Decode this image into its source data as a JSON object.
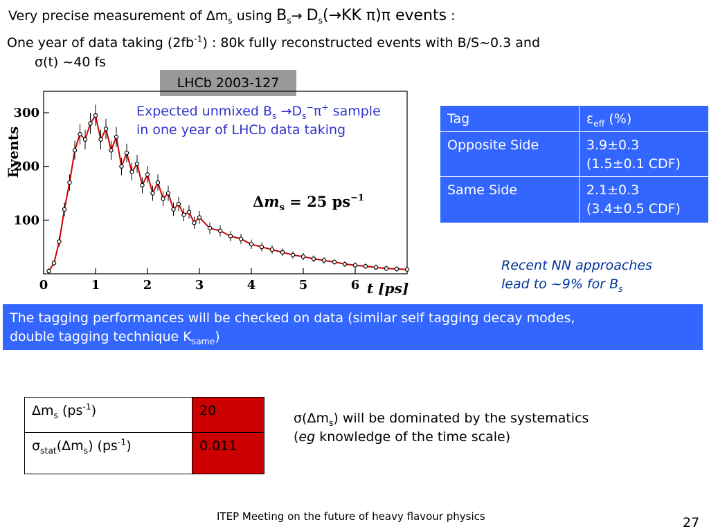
{
  "title": {
    "prefix": "Very precise measurement of ",
    "delta": "Δ",
    "m": "m",
    "m_sub": "s",
    "using": " using ",
    "Bs": "B",
    "Bs_sub": "s",
    "arrow1": "→ ",
    "Ds": "D",
    "Ds_sub": "s",
    "decay": "(→KK π)π",
    "events": " events",
    "colon": " :"
  },
  "intro": {
    "line1_a": "One year of data taking (2fb",
    "line1_sup": "-1",
    "line1_b": ") : 80k fully reconstructed events with B/S~0.3 and",
    "line2": "σ(t) ~40 fs"
  },
  "reference": "LHCb 2003-127",
  "caption": {
    "line1_a": "Expected unmixed B",
    "line1_sub1": "s",
    "line1_b": " →D",
    "line1_sub2": "s",
    "line1_sup2": "−",
    "line1_c": "π",
    "line1_sup3": "+",
    "line1_d": " sample",
    "line2": "in one year of LHCb data taking"
  },
  "tag_table": {
    "header_col1": "Tag",
    "header_col2_eps": "ε",
    "header_col2_sub": "eff",
    "header_col2_unit": " (%)",
    "rows": [
      {
        "name": "Opposite Side",
        "value": "3.9±0.3",
        "cdf": "(1.5±0.1 CDF)"
      },
      {
        "name": "Same Side",
        "value": "2.1±0.3",
        "cdf": "(3.4±0.5 CDF)"
      }
    ]
  },
  "nn_note": {
    "line1": "Recent NN approaches",
    "line2_a": "lead to ~9% for B",
    "line2_sub": "s"
  },
  "banner": {
    "line1": "The tagging performances will be checked on data (similar self tagging decay modes,",
    "line2_a": "double tagging technique K",
    "line2_sub": "same",
    "line2_b": ")"
  },
  "dm_table": {
    "row1_label_a": "Δm",
    "row1_label_sub": "s",
    "row1_label_b": " (ps",
    "row1_label_sup": "-1",
    "row1_label_c": ")",
    "row1_value": "20",
    "row2_label_sigma": "σ",
    "row2_label_sub1": "stat",
    "row2_label_a": "(Δm",
    "row2_label_sub2": "s",
    "row2_label_b": ")  (ps",
    "row2_label_sup": "-1",
    "row2_label_c": ")",
    "row2_value": "0.011"
  },
  "syst_note": {
    "line1_a": "σ(Δm",
    "line1_sub": "s",
    "line1_b": ") will be dominated by the systematics",
    "line2_a": "(",
    "line2_em": "eg",
    "line2_b": " knowledge of the time scale)"
  },
  "footer": "ITEP Meeting on the future of heavy flavour physics",
  "page_number": "27",
  "chart_data": {
    "type": "scatter",
    "ylabel": "Events",
    "xlabel": "t [ps]",
    "annotation": "Δm_s = 25 ps^-1",
    "annotation_parts": {
      "delta": "Δ",
      "m": "m",
      "sub": "s",
      "eq": " = 25 ps",
      "sup": "−1"
    },
    "xlim": [
      0,
      7
    ],
    "ylim": [
      0,
      340
    ],
    "x_ticks": [
      "0",
      "1",
      "2",
      "3",
      "4",
      "5",
      "6"
    ],
    "y_ticks": [
      "100",
      "200",
      "300"
    ],
    "series": [
      {
        "x": [
          0.1,
          0.2,
          0.3,
          0.4,
          0.5,
          0.6,
          0.7,
          0.8,
          0.9,
          1.0,
          1.1,
          1.2,
          1.3,
          1.4,
          1.5,
          1.6,
          1.7,
          1.8,
          1.9,
          2.0,
          2.1,
          2.2,
          2.3,
          2.4,
          2.5,
          2.6,
          2.7,
          2.8,
          2.9,
          3.0,
          3.2,
          3.4,
          3.6,
          3.8,
          4.0,
          4.2,
          4.4,
          4.6,
          4.8,
          5.0,
          5.2,
          5.4,
          5.6,
          5.8,
          6.0,
          6.2,
          6.4,
          6.6,
          6.8,
          7.0
        ],
        "y": [
          5,
          20,
          60,
          120,
          170,
          230,
          260,
          250,
          280,
          295,
          250,
          270,
          230,
          255,
          200,
          225,
          190,
          205,
          165,
          185,
          150,
          170,
          140,
          150,
          120,
          130,
          110,
          115,
          95,
          105,
          85,
          80,
          70,
          65,
          55,
          50,
          45,
          40,
          35,
          32,
          28,
          25,
          22,
          18,
          16,
          14,
          12,
          10,
          9,
          8
        ]
      }
    ]
  },
  "colors": {
    "accent_blue": "#3366ff",
    "caption_blue": "#3333cc",
    "value_red": "#cc0000",
    "fit_curve": "#cc0000",
    "ref_gray": "#999999"
  }
}
